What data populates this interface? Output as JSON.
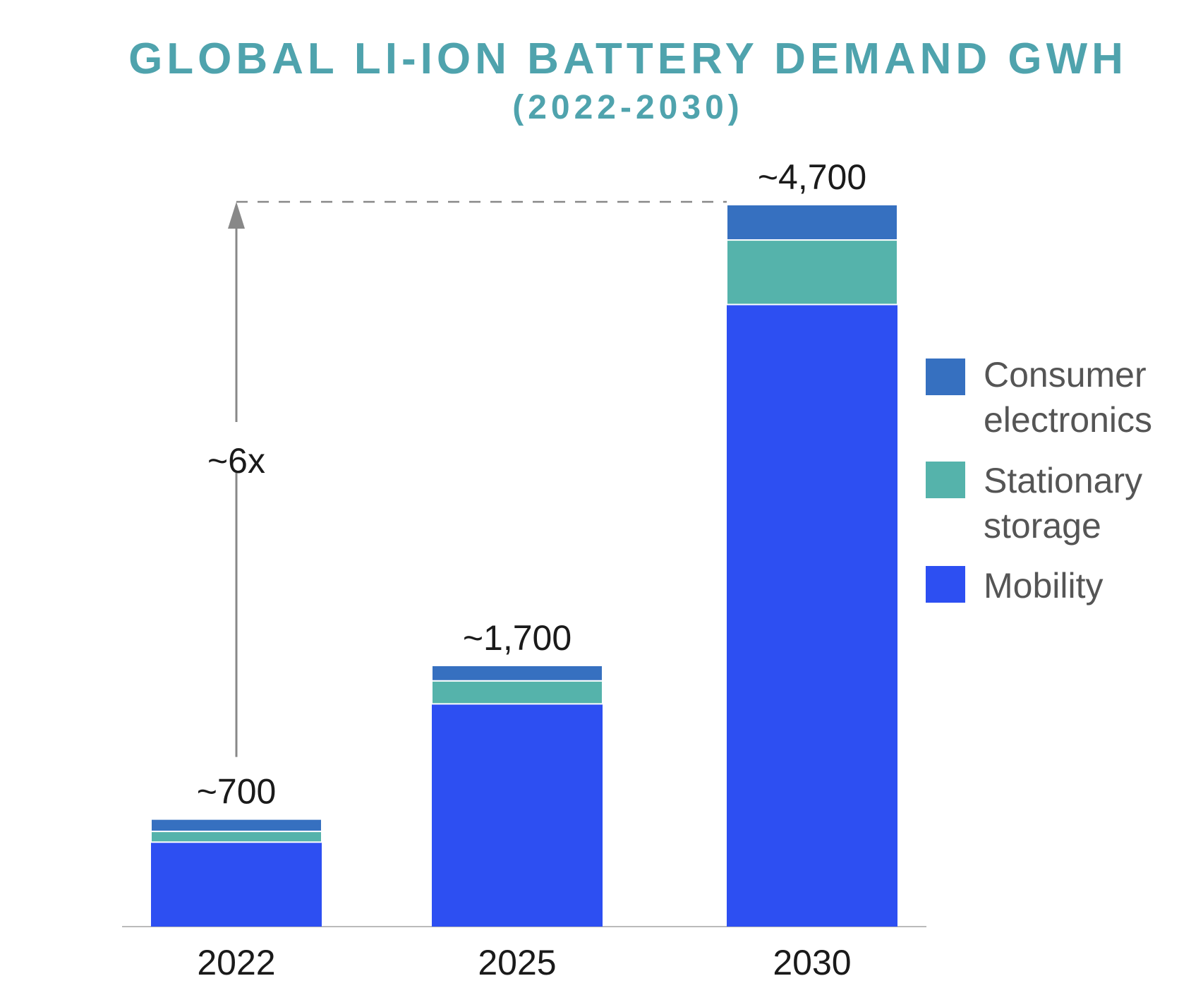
{
  "chart_data": {
    "type": "bar",
    "stacked": true,
    "title": "GLOBAL LI-ION BATTERY DEMAND GWH",
    "subtitle": "(2022-2030)",
    "xlabel": "",
    "ylabel": "",
    "ylim": [
      0,
      4700
    ],
    "grid": false,
    "categories": [
      "2022",
      "2025",
      "2030"
    ],
    "series": [
      {
        "name": "Mobility",
        "values": [
          550,
          1450,
          4050
        ],
        "color": "#2d4ff2"
      },
      {
        "name": "Stationary storage",
        "values": [
          70,
          150,
          420
        ],
        "color": "#55b3ab"
      },
      {
        "name": "Consumer electronics",
        "values": [
          80,
          100,
          230
        ],
        "color": "#3670c0"
      }
    ],
    "totals_labels": [
      "~700",
      "~1,700",
      "~4,700"
    ],
    "annotation": {
      "label": "~6x",
      "from": 700,
      "to": 4700
    },
    "legend": {
      "placement": "right",
      "items": [
        {
          "line1": "Consumer",
          "line2": "electronics",
          "color": "#3670c0"
        },
        {
          "line1": "Stationary",
          "line2": "storage",
          "color": "#55b3ab"
        },
        {
          "line1": "Mobility",
          "line2": "",
          "color": "#2d4ff2"
        }
      ]
    },
    "colors": {
      "title": "#4fa3ad",
      "text": "#1a1a1a",
      "legend_text": "#555555",
      "axis": "#bbbbbb",
      "arrow": "#888888"
    }
  }
}
